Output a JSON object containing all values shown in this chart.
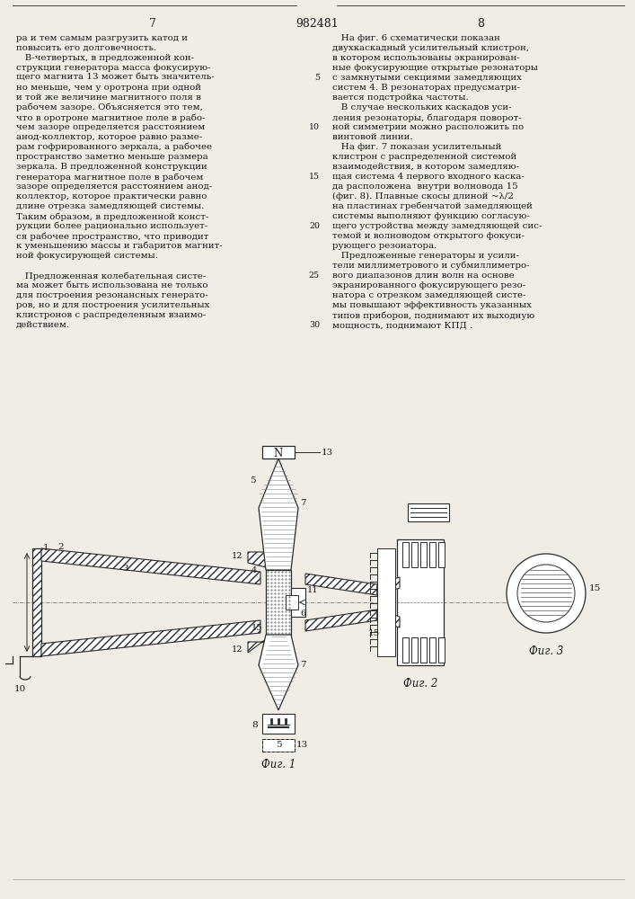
{
  "page_numbers": [
    "7",
    "8"
  ],
  "patent_number": "982481",
  "bg_color": "#f0ede6",
  "text_color": "#1a1a1a",
  "left_column": [
    "ра и тем самым разгрузить катод и",
    "повысить его долговечность.",
    "   В-четвертых, в предложенной кон-",
    "струкции генератора масса фокусирую-",
    "щего магнита 13 может быть значитель-",
    "но меньше, чем у оротрона при одной",
    "и той же величине магнитного поля в",
    "рабочем зазоре. Объясняется это тем,",
    "что в оротроне магнитное поле в рабо-",
    "чем зазоре определяется расстоянием",
    "анод-коллектор, которое равно разме-",
    "рам гофрированного зеркала, а рабочее",
    "пространство заметно меньше размера",
    "зеркала. В предложенной конструкции",
    "генератора магнитное поле в рабочем",
    "зазоре определяется расстоянием анод-",
    "коллектор, которое практически равно",
    "длине отрезка замедляющей системы.",
    "Таким образом, в предложенной конст-",
    "рукции более рационально использует-",
    "ся рабочее пространство, что приводит",
    "к уменьшению массы и габаритов магнит-",
    "ной фокусирующей системы.",
    "",
    "   Предложенная колебательная систе-",
    "ма может быть использована не только",
    "для построения резонансных генерато-",
    "ров, но и для построения усилительных",
    "клистронов с распределенным взаимо-",
    "действием."
  ],
  "right_column": [
    "   На фиг. 6 схематически показан",
    "двухкаскадный усилительный клистрон,",
    "в котором использованы экранирован-",
    "ные фокусирующие открытые резонаторы",
    "с замкнутыми секциями замедляющих",
    "систем 4. В резонаторах предусматри-",
    "вается подстройка частоты.",
    "   В случае нескольких каскадов уси-",
    "ления резонаторы, благодаря поворот-",
    "ной симметрии можно расположить по",
    "винтовой линии.",
    "   На фиг. 7 показан усилительный",
    "клистрон с распределенной системой",
    "взаимодействия, в котором замедляю-",
    "щая система 4 первого входного каска-",
    "да расположена  внутри волновода 15",
    "(фиг. 8). Плавные скосы длиной ~λ/2",
    "на пластинах гребенчатой замедляющей",
    "системы выполняют функцию согласую-",
    "щего устройства между замедляющей сис-",
    "темой и волноводом открытого фокуси-",
    "рующего резонатора.",
    "   Предложенные генераторы и усили-",
    "тели миллиметрового и субмиллиметро-",
    "вого диапазонов длин волн на основе",
    "экранированного фокусирующего резо-",
    "натора с отрезком замедляющей систе-",
    "мы повышают эффективность указанных",
    "типов приборов, поднимают их выходную",
    "мощность, поднимают КПД ."
  ],
  "line_numbers": [
    5,
    10,
    15,
    20,
    25,
    30
  ],
  "fig_caption_1": "Фиг. 1",
  "fig_caption_2": "Фиг. 2",
  "fig_caption_3": "Фиг. 3",
  "draw_color": "#2a2a2a",
  "hatch_color": "#555555"
}
